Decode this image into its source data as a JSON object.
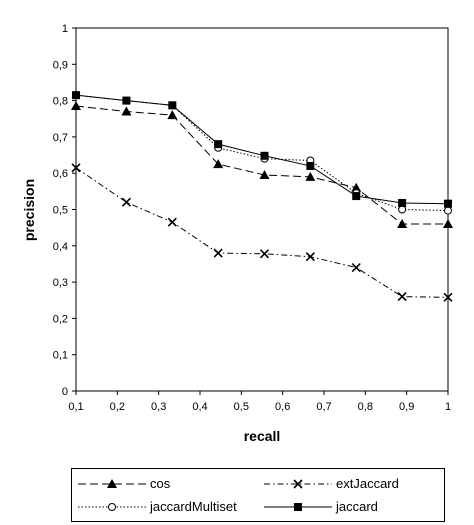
{
  "chart_data": {
    "type": "line",
    "title": "",
    "xlabel": "recall",
    "ylabel": "precision",
    "xlim": [
      0.1,
      1
    ],
    "ylim": [
      0,
      1
    ],
    "x_ticks": [
      "0,1",
      "0,2",
      "0,3",
      "0,4",
      "0,5",
      "0,6",
      "0,7",
      "0,8",
      "0,9",
      "1"
    ],
    "y_ticks": [
      "0",
      "0,1",
      "0,2",
      "0,3",
      "0,4",
      "0,5",
      "0,6",
      "0,7",
      "0,8",
      "0,9",
      "1"
    ],
    "grid": false,
    "legend_position": "bottom",
    "x": [
      0.1,
      0.222,
      0.333,
      0.444,
      0.556,
      0.667,
      0.778,
      0.889,
      1.0
    ],
    "series": [
      {
        "name": "cos",
        "marker": "triangle",
        "dash": "long-dash",
        "values": [
          0.785,
          0.77,
          0.76,
          0.625,
          0.595,
          0.59,
          0.56,
          0.46,
          0.46
        ]
      },
      {
        "name": "extJaccard",
        "marker": "cross",
        "dash": "dash-dot",
        "values": [
          0.615,
          0.52,
          0.465,
          0.38,
          0.378,
          0.37,
          0.34,
          0.26,
          0.258
        ]
      },
      {
        "name": "jaccardMultiset",
        "marker": "open-circle",
        "dash": "dotted",
        "values": [
          0.815,
          0.8,
          0.787,
          0.67,
          0.64,
          0.635,
          0.545,
          0.5,
          0.497
        ]
      },
      {
        "name": "jaccard",
        "marker": "square",
        "dash": "solid",
        "values": [
          0.815,
          0.8,
          0.787,
          0.68,
          0.648,
          0.62,
          0.537,
          0.518,
          0.516
        ]
      }
    ]
  }
}
